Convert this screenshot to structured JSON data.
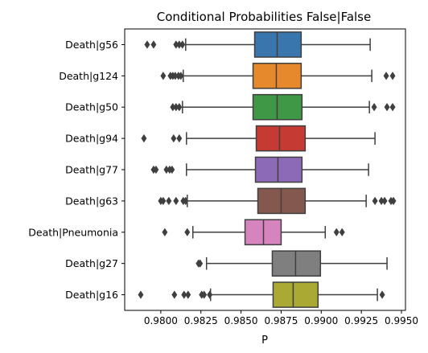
{
  "chart_data": {
    "type": "box",
    "orientation": "horizontal",
    "title": "Conditional Probabilities False|False",
    "xlabel": "P",
    "ylabel": "",
    "xlim": [
      0.97775,
      0.99525
    ],
    "xticks": [
      0.98,
      0.9825,
      0.985,
      0.9875,
      0.99,
      0.9925,
      0.995
    ],
    "xtick_labels": [
      "0.9800",
      "0.9825",
      "0.9850",
      "0.9875",
      "0.9900",
      "0.9925",
      "0.9950"
    ],
    "grid": false,
    "legend": "none",
    "categories": [
      "Death|g56",
      "Death|g124",
      "Death|g50",
      "Death|g94",
      "Death|g77",
      "Death|g63",
      "Death|Pneumonia",
      "Death|g27",
      "Death|g16"
    ],
    "boxes": [
      {
        "label": "Death|g56",
        "color": "#3a76ae",
        "whisker_low": 0.98155,
        "q1": 0.98585,
        "median": 0.98725,
        "q3": 0.98875,
        "whisker_high": 0.99305,
        "outliers": [
          0.97915,
          0.97955,
          0.98095,
          0.98115,
          0.98135
        ]
      },
      {
        "label": "Death|g124",
        "color": "#e6892d",
        "whisker_low": 0.9814,
        "q1": 0.98575,
        "median": 0.9872,
        "q3": 0.98875,
        "whisker_high": 0.99315,
        "outliers": [
          0.98015,
          0.9806,
          0.98075,
          0.9809,
          0.9811,
          0.98125,
          0.99405,
          0.99445
        ]
      },
      {
        "label": "Death|g50",
        "color": "#3e9845",
        "whisker_low": 0.98135,
        "q1": 0.98575,
        "median": 0.98725,
        "q3": 0.9888,
        "whisker_high": 0.993,
        "outliers": [
          0.98075,
          0.98095,
          0.98115,
          0.9933,
          0.9941,
          0.99445
        ]
      },
      {
        "label": "Death|g94",
        "color": "#c53a32",
        "whisker_low": 0.9816,
        "q1": 0.98595,
        "median": 0.9874,
        "q3": 0.989,
        "whisker_high": 0.99335,
        "outliers": [
          0.97895,
          0.9808,
          0.98115
        ]
      },
      {
        "label": "Death|g77",
        "color": "#8d6ab8",
        "whisker_low": 0.9816,
        "q1": 0.9859,
        "median": 0.9873,
        "q3": 0.9888,
        "whisker_high": 0.99295,
        "outliers": [
          0.97955,
          0.9797,
          0.98035,
          0.98055,
          0.9807
        ]
      },
      {
        "label": "Death|g63",
        "color": "#84584e",
        "whisker_low": 0.98165,
        "q1": 0.98605,
        "median": 0.9875,
        "q3": 0.989,
        "whisker_high": 0.9928,
        "outliers": [
          0.98,
          0.98015,
          0.9805,
          0.98095,
          0.9814,
          0.98155,
          0.99335,
          0.99375,
          0.99395,
          0.99435,
          0.9945
        ]
      },
      {
        "label": "Death|Pneumonia",
        "color": "#d684bd",
        "whisker_low": 0.982,
        "q1": 0.98525,
        "median": 0.9864,
        "q3": 0.9875,
        "whisker_high": 0.99025,
        "outliers": [
          0.98025,
          0.98165,
          0.99095,
          0.9913
        ]
      },
      {
        "label": "Death|g27",
        "color": "#7f7f7f",
        "whisker_low": 0.98285,
        "q1": 0.98695,
        "median": 0.9884,
        "q3": 0.98995,
        "whisker_high": 0.9941,
        "outliers": [
          0.98235,
          0.98245
        ]
      },
      {
        "label": "Death|g16",
        "color": "#a9a934",
        "whisker_low": 0.9831,
        "q1": 0.987,
        "median": 0.98825,
        "q3": 0.9898,
        "whisker_high": 0.9935,
        "outliers": [
          0.97875,
          0.98085,
          0.98145,
          0.9817,
          0.98255,
          0.9827,
          0.98305,
          0.9938
        ]
      }
    ]
  }
}
